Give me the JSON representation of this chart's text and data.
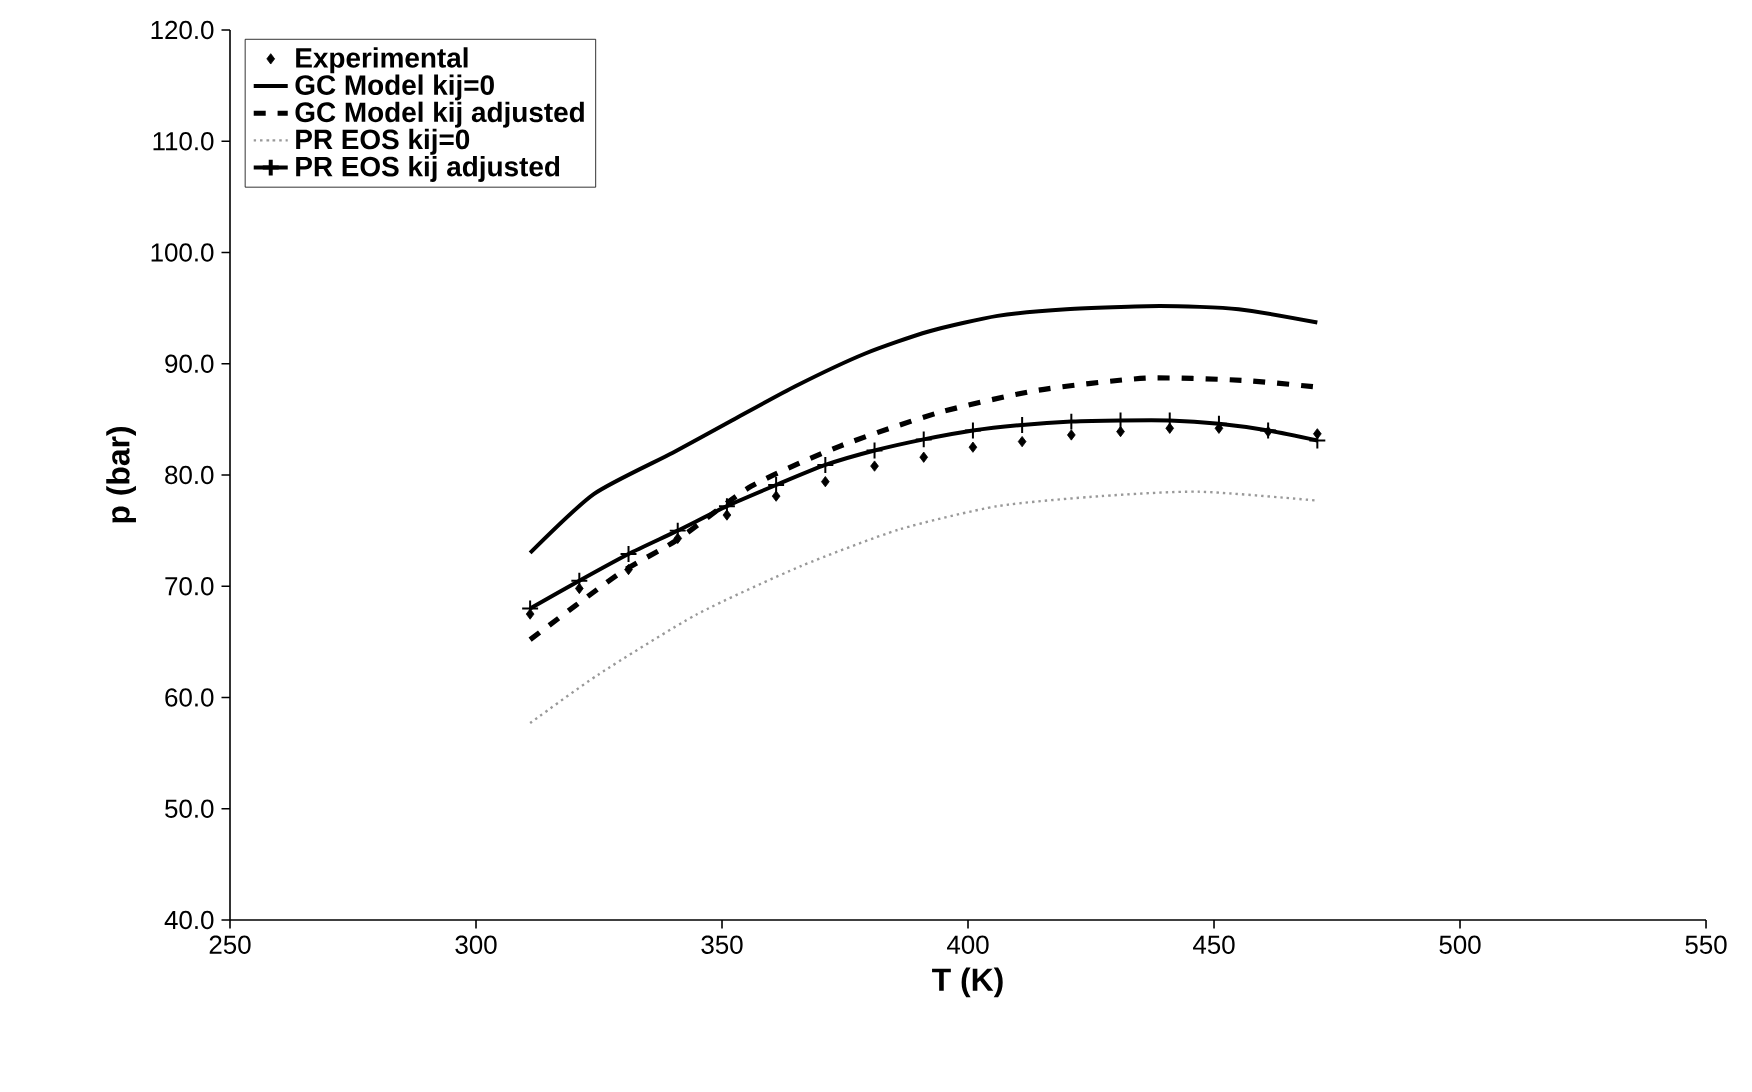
{
  "chart_data": {
    "type": "line",
    "xlabel": "T (K)",
    "ylabel": "p (bar)",
    "xlim": [
      250,
      550
    ],
    "xticks": [
      250,
      300,
      350,
      400,
      450,
      500,
      550
    ],
    "ylim": [
      40,
      120
    ],
    "yticks": [
      {
        "value": 40,
        "label": "40.0"
      },
      {
        "value": 50,
        "label": "50.0"
      },
      {
        "value": 60,
        "label": "60.0"
      },
      {
        "value": 70,
        "label": "70.0"
      },
      {
        "value": 80,
        "label": "80.0"
      },
      {
        "value": 90,
        "label": "90.0"
      },
      {
        "value": 100,
        "label": "100.0"
      },
      {
        "value": 110,
        "label": "110.0"
      },
      {
        "value": 120,
        "label": "120.0"
      }
    ],
    "legend": "top left",
    "grid": false,
    "series": [
      {
        "name": "Experimental",
        "type": "scatter",
        "marker": "diamond",
        "color": "#000000",
        "x": [
          311,
          321,
          331,
          341,
          351,
          361,
          371,
          381,
          391,
          401,
          411,
          421,
          431,
          441,
          451,
          461,
          471
        ],
        "values": [
          67.5,
          69.8,
          71.5,
          74.3,
          76.4,
          78.1,
          79.4,
          80.8,
          81.6,
          82.5,
          83.0,
          83.6,
          83.9,
          84.2,
          84.2,
          83.9,
          83.7
        ]
      },
      {
        "name": "GC Model kij=0",
        "line_style": "solid",
        "marker": "none",
        "color": "#000000",
        "x": [
          311,
          324,
          340,
          352,
          365,
          379,
          392,
          406,
          420,
          439,
          455,
          471
        ],
        "values": [
          73.0,
          78.3,
          82.0,
          84.9,
          88.0,
          90.9,
          92.9,
          94.3,
          94.9,
          95.2,
          94.9,
          93.7
        ]
      },
      {
        "name": "GC Model kij adjusted",
        "line_style": "dashed",
        "marker": "none",
        "color": "#000000",
        "x": [
          311,
          329,
          341,
          356,
          374,
          394,
          414,
          436,
          456,
          471
        ],
        "values": [
          65.2,
          71.1,
          74.2,
          79.0,
          82.6,
          85.6,
          87.6,
          88.7,
          88.5,
          87.9
        ]
      },
      {
        "name": "PR EOS kij=0",
        "line_style": "dotted",
        "marker": "none",
        "color": "#999999",
        "x": [
          311,
          325,
          345,
          366,
          386,
          406,
          427,
          447,
          471
        ],
        "values": [
          57.7,
          62.1,
          67.5,
          71.8,
          75.1,
          77.2,
          78.1,
          78.5,
          77.7
        ]
      },
      {
        "name": "PR EOS kij adjusted",
        "line_style": "solid",
        "marker": "cross",
        "color": "#000000",
        "x": [
          311,
          321,
          331,
          341,
          351,
          361,
          371,
          381,
          391,
          401,
          411,
          421,
          431,
          441,
          451,
          461,
          471
        ],
        "values": [
          68.0,
          70.5,
          72.9,
          75.0,
          77.2,
          79.1,
          80.9,
          82.2,
          83.2,
          84.0,
          84.5,
          84.8,
          84.9,
          84.9,
          84.6,
          84.0,
          83.1
        ]
      }
    ]
  }
}
